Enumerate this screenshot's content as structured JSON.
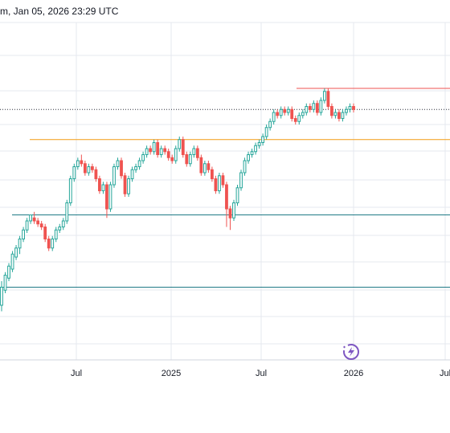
{
  "header": {
    "timestamp": "m, Jan 05, 2026 23:29 UTC"
  },
  "colors": {
    "up": "#26a69a",
    "down": "#ef5350",
    "grid": "#e6e9ef",
    "resistance": "#ef5350",
    "support_orange": "#f39c12",
    "support_teal": "#26a69a",
    "support_blue": "#2962ff",
    "last_price_dotted": "#2a2e39",
    "logo": "#7e57c2"
  },
  "icons": {
    "logo": "lightning-sparkle-icon"
  },
  "chart_data": {
    "type": "candlestick",
    "title": "",
    "xlabel": "",
    "ylabel": "",
    "x_tick_labels": [
      "Jul",
      "2025",
      "Jul",
      "2026",
      "Jul"
    ],
    "grid": true,
    "y_range": [
      0,
      100
    ],
    "horizontal_lines": [
      {
        "color": "red",
        "level": 80
      },
      {
        "color": "dotted",
        "level": 73
      },
      {
        "color": "orange",
        "level": 63
      },
      {
        "color": "teal",
        "level": 38
      },
      {
        "color": "teal",
        "level": 14
      }
    ],
    "candles": [
      [
        8,
        14,
        6,
        16
      ],
      [
        13,
        18,
        12,
        19
      ],
      [
        17,
        21,
        16,
        22
      ],
      [
        20,
        25,
        19,
        26
      ],
      [
        24,
        27,
        23,
        28
      ],
      [
        27,
        30,
        25,
        31
      ],
      [
        30,
        33,
        29,
        34
      ],
      [
        33,
        36,
        32,
        37
      ],
      [
        36,
        38,
        35,
        38
      ],
      [
        37,
        36,
        35,
        39
      ],
      [
        36,
        35,
        34,
        37
      ],
      [
        35,
        34,
        33,
        36
      ],
      [
        34,
        30,
        29,
        35
      ],
      [
        30,
        27,
        26,
        31
      ],
      [
        27,
        30,
        26,
        31
      ],
      [
        30,
        33,
        29,
        34
      ],
      [
        33,
        34,
        32,
        35
      ],
      [
        34,
        36,
        33,
        37
      ],
      [
        36,
        42,
        35,
        43
      ],
      [
        42,
        50,
        41,
        51
      ],
      [
        50,
        54,
        49,
        55
      ],
      [
        54,
        56,
        53,
        57
      ],
      [
        56,
        55,
        54,
        58
      ],
      [
        55,
        52,
        51,
        56
      ],
      [
        52,
        54,
        51,
        55
      ],
      [
        54,
        53,
        52,
        55
      ],
      [
        53,
        50,
        49,
        54
      ],
      [
        50,
        46,
        45,
        51
      ],
      [
        46,
        48,
        45,
        49
      ],
      [
        48,
        40,
        37,
        49
      ],
      [
        40,
        48,
        39,
        49
      ],
      [
        48,
        54,
        47,
        55
      ],
      [
        54,
        56,
        53,
        57
      ],
      [
        56,
        51,
        50,
        57
      ],
      [
        51,
        45,
        44,
        52
      ],
      [
        45,
        50,
        44,
        51
      ],
      [
        50,
        53,
        49,
        54
      ],
      [
        53,
        54,
        52,
        55
      ],
      [
        54,
        56,
        53,
        57
      ],
      [
        56,
        58,
        55,
        59
      ],
      [
        58,
        60,
        57,
        61
      ],
      [
        60,
        59,
        58,
        61
      ],
      [
        59,
        62,
        58,
        63
      ],
      [
        62,
        58,
        57,
        63
      ],
      [
        58,
        60,
        57,
        61
      ],
      [
        60,
        59,
        58,
        61
      ],
      [
        59,
        57,
        56,
        60
      ],
      [
        57,
        56,
        55,
        58
      ],
      [
        56,
        60,
        55,
        61
      ],
      [
        60,
        63,
        59,
        64
      ],
      [
        63,
        58,
        57,
        64
      ],
      [
        58,
        55,
        54,
        59
      ],
      [
        55,
        58,
        54,
        59
      ],
      [
        58,
        60,
        57,
        61
      ],
      [
        60,
        57,
        56,
        61
      ],
      [
        57,
        52,
        51,
        58
      ],
      [
        52,
        55,
        51,
        56
      ],
      [
        55,
        53,
        52,
        56
      ],
      [
        53,
        50,
        49,
        54
      ],
      [
        50,
        46,
        45,
        51
      ],
      [
        46,
        51,
        45,
        52
      ],
      [
        51,
        48,
        47,
        52
      ],
      [
        48,
        40,
        34,
        49
      ],
      [
        40,
        37,
        33,
        41
      ],
      [
        37,
        42,
        36,
        43
      ],
      [
        42,
        47,
        41,
        48
      ],
      [
        47,
        52,
        46,
        53
      ],
      [
        52,
        56,
        51,
        57
      ],
      [
        56,
        58,
        55,
        59
      ],
      [
        58,
        59,
        57,
        60
      ],
      [
        59,
        61,
        58,
        62
      ],
      [
        61,
        62,
        60,
        63
      ],
      [
        62,
        64,
        61,
        65
      ],
      [
        64,
        67,
        63,
        68
      ],
      [
        67,
        69,
        66,
        70
      ],
      [
        69,
        72,
        68,
        73
      ],
      [
        72,
        71,
        70,
        73
      ],
      [
        71,
        73,
        70,
        74
      ],
      [
        73,
        72,
        71,
        74
      ],
      [
        72,
        73,
        71,
        74
      ],
      [
        73,
        70,
        69,
        74
      ],
      [
        70,
        69,
        68,
        71
      ],
      [
        69,
        71,
        68,
        72
      ],
      [
        71,
        72,
        70,
        73
      ],
      [
        72,
        74,
        71,
        75
      ],
      [
        74,
        73,
        72,
        75
      ],
      [
        73,
        75,
        72,
        76
      ],
      [
        75,
        72,
        71,
        76
      ],
      [
        72,
        76,
        71,
        77
      ],
      [
        76,
        79,
        75,
        80
      ],
      [
        79,
        74,
        73,
        80
      ],
      [
        74,
        71,
        70,
        75
      ],
      [
        71,
        72,
        70,
        73
      ],
      [
        72,
        70,
        69,
        73
      ],
      [
        70,
        72,
        69,
        73
      ],
      [
        72,
        73,
        71,
        74
      ],
      [
        73,
        74,
        72,
        75
      ],
      [
        74,
        73,
        72,
        75
      ]
    ]
  }
}
